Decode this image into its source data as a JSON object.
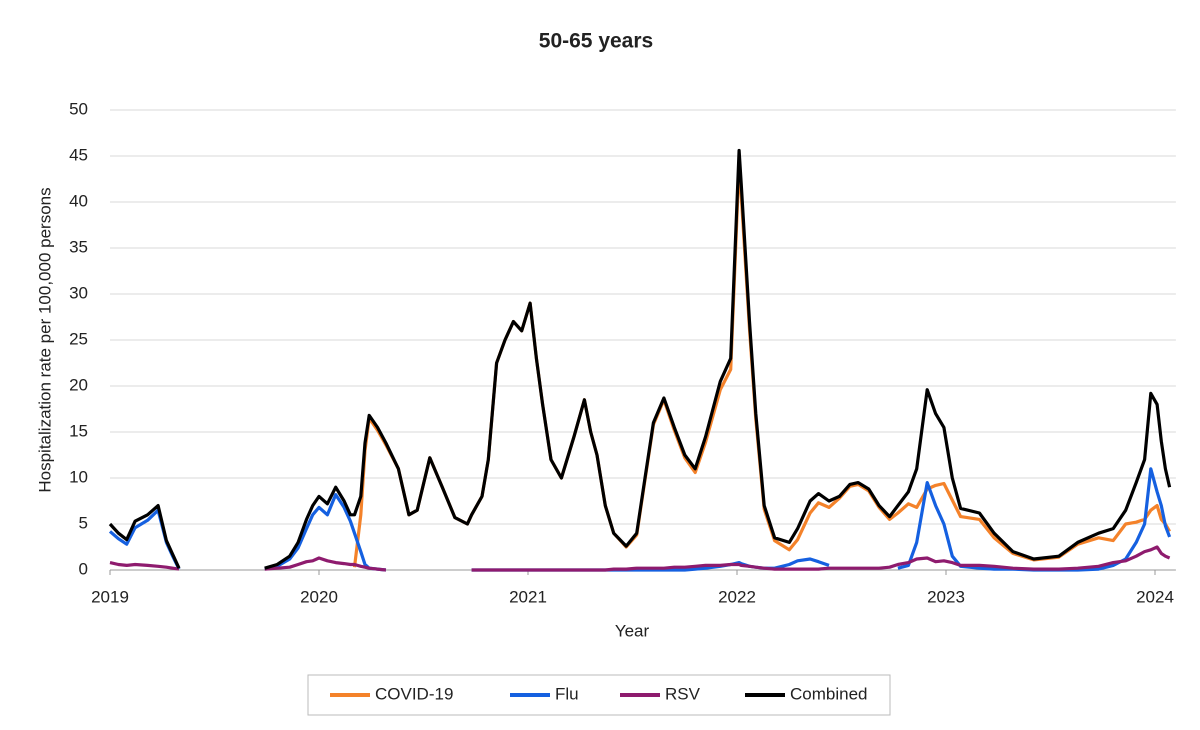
{
  "chart_data": {
    "type": "line",
    "title": "50-65 years",
    "x_label": "Year",
    "y_label": "Hospitalization rate per 100,000 persons",
    "x": [
      2019,
      2019.04,
      2019.08,
      2019.12,
      2019.18,
      2019.23,
      2019.27,
      2019.3,
      2019.33,
      2019.5,
      2019.74,
      2019.8,
      2019.86,
      2019.9,
      2019.94,
      2019.97,
      2020,
      2020.04,
      2020.08,
      2020.12,
      2020.15,
      2020.17,
      2020.2,
      2020.22,
      2020.24,
      2020.28,
      2020.32,
      2020.38,
      2020.43,
      2020.47,
      2020.53,
      2020.59,
      2020.65,
      2020.71,
      2020.73,
      2020.78,
      2020.81,
      2020.85,
      2020.89,
      2020.93,
      2020.97,
      2021.01,
      2021.04,
      2021.07,
      2021.11,
      2021.16,
      2021.22,
      2021.27,
      2021.3,
      2021.33,
      2021.37,
      2021.41,
      2021.47,
      2021.52,
      2021.56,
      2021.6,
      2021.65,
      2021.7,
      2021.75,
      2021.8,
      2021.85,
      2021.92,
      2021.97,
      2022.01,
      2022.02,
      2022.06,
      2022.09,
      2022.13,
      2022.18,
      2022.25,
      2022.29,
      2022.35,
      2022.39,
      2022.44,
      2022.49,
      2022.54,
      2022.58,
      2022.63,
      2022.68,
      2022.73,
      2022.77,
      2022.82,
      2022.86,
      2022.91,
      2022.95,
      2022.99,
      2023.03,
      2023.07,
      2023.16,
      2023.23,
      2023.32,
      2023.42,
      2023.54,
      2023.63,
      2023.73,
      2023.8,
      2023.86,
      2023.91,
      2023.95,
      2023.98,
      2024.01,
      2024.03,
      2024.05,
      2024.07
    ],
    "series": [
      {
        "name": "COVID-19",
        "color": "#f4822a",
        "values": [
          null,
          null,
          null,
          null,
          null,
          null,
          null,
          null,
          null,
          null,
          null,
          null,
          null,
          null,
          null,
          null,
          null,
          null,
          null,
          null,
          null,
          0.3,
          6.0,
          13.0,
          16.5,
          15.2,
          13.6,
          11.0,
          6.0,
          6.5,
          12.2,
          9.0,
          5.7,
          5.0,
          6.0,
          8.0,
          12.0,
          22.5,
          25.0,
          27.0,
          26.0,
          29.0,
          23.0,
          18.0,
          12.0,
          10.0,
          14.5,
          18.5,
          15.0,
          12.5,
          7.0,
          4.0,
          2.5,
          3.8,
          9.8,
          15.8,
          18.5,
          15.2,
          12.2,
          10.6,
          13.9,
          19.6,
          21.8,
          44.2,
          40.8,
          26.2,
          16.4,
          6.6,
          3.2,
          2.2,
          3.3,
          6.2,
          7.3,
          6.8,
          7.8,
          9.1,
          9.3,
          8.6,
          6.8,
          5.5,
          6.2,
          7.2,
          6.8,
          8.8,
          9.2,
          9.4,
          7.6,
          5.8,
          5.5,
          3.5,
          1.8,
          1.1,
          1.4,
          2.8,
          3.5,
          3.2,
          5.0,
          5.2,
          5.5,
          6.5,
          7.0,
          5.5,
          5.0,
          4.2
        ]
      },
      {
        "name": "Flu",
        "color": "#1560e0",
        "values": [
          4.2,
          3.4,
          2.8,
          4.6,
          5.4,
          6.5,
          3.0,
          1.5,
          0.1,
          null,
          0.1,
          0.4,
          1.2,
          2.4,
          4.5,
          6.0,
          6.8,
          6.0,
          8.2,
          6.8,
          5.3,
          4.0,
          2.0,
          0.6,
          0.2,
          0.1,
          0.0,
          null,
          null,
          null,
          null,
          null,
          null,
          null,
          0,
          0,
          0,
          0,
          0,
          0,
          0,
          0,
          0,
          0,
          0,
          0,
          0,
          0,
          0,
          0,
          0,
          0,
          0,
          0,
          0,
          0,
          0,
          0,
          0,
          0.1,
          0.2,
          0.4,
          0.6,
          0.8,
          0.7,
          0.4,
          0.3,
          0.2,
          0.2,
          0.6,
          1.0,
          1.2,
          0.9,
          0.5,
          null,
          null,
          null,
          null,
          null,
          null,
          0.2,
          0.5,
          3.0,
          9.5,
          7.0,
          5.0,
          1.5,
          0.4,
          0.2,
          0.1,
          0.1,
          0,
          0,
          0,
          0.1,
          0.5,
          1.2,
          3.0,
          5.0,
          11.0,
          8.5,
          7.0,
          4.8,
          3.6
        ]
      },
      {
        "name": "RSV",
        "color": "#8e1b6e",
        "values": [
          0.8,
          0.6,
          0.5,
          0.6,
          0.5,
          0.4,
          0.3,
          0.2,
          0.1,
          null,
          0.1,
          0.2,
          0.3,
          0.6,
          0.9,
          1.0,
          1.3,
          1.0,
          0.8,
          0.7,
          0.6,
          0.6,
          0.4,
          0.3,
          0.2,
          0.1,
          0.0,
          null,
          null,
          null,
          null,
          null,
          null,
          null,
          0,
          0,
          0,
          0,
          0,
          0,
          0,
          0,
          0,
          0,
          0,
          0,
          0,
          0,
          0,
          0,
          0,
          0.1,
          0.1,
          0.2,
          0.2,
          0.2,
          0.2,
          0.3,
          0.3,
          0.4,
          0.5,
          0.5,
          0.6,
          0.6,
          0.5,
          0.4,
          0.3,
          0.2,
          0.1,
          0.1,
          0.1,
          0.1,
          0.1,
          0.2,
          0.2,
          0.2,
          0.2,
          0.2,
          0.2,
          0.3,
          0.6,
          0.8,
          1.2,
          1.3,
          0.9,
          1.0,
          0.8,
          0.5,
          0.5,
          0.4,
          0.2,
          0.1,
          0.1,
          0.2,
          0.4,
          0.8,
          1.0,
          1.5,
          2.0,
          2.2,
          2.5,
          1.8,
          1.5,
          1.3
        ]
      },
      {
        "name": "Combined",
        "color": "#000000",
        "values": [
          5.0,
          4.0,
          3.3,
          5.3,
          6.0,
          7.0,
          3.2,
          1.7,
          0.2,
          null,
          0.2,
          0.6,
          1.5,
          3.0,
          5.5,
          7.0,
          8.0,
          7.2,
          9.0,
          7.5,
          6.0,
          6.0,
          8.0,
          13.8,
          16.8,
          15.5,
          13.8,
          11.0,
          6.0,
          6.5,
          12.2,
          9.0,
          5.7,
          5.0,
          6.0,
          8.0,
          12.0,
          22.5,
          25.0,
          27.0,
          26.0,
          29.0,
          23.0,
          18.0,
          12.0,
          10.0,
          14.5,
          18.5,
          15.0,
          12.5,
          7.0,
          4.0,
          2.6,
          4.0,
          10.0,
          16.0,
          18.7,
          15.5,
          12.5,
          11.0,
          14.5,
          20.5,
          23.0,
          45.6,
          42.0,
          27.0,
          17.0,
          7.0,
          3.5,
          3.0,
          4.5,
          7.5,
          8.3,
          7.5,
          8.0,
          9.3,
          9.5,
          8.8,
          7.0,
          5.8,
          7.0,
          8.5,
          11.0,
          19.6,
          17.0,
          15.5,
          10.0,
          6.7,
          6.2,
          4.0,
          2.0,
          1.2,
          1.5,
          3.0,
          4.0,
          4.5,
          6.5,
          9.5,
          12.0,
          19.2,
          18.0,
          14.0,
          11.0,
          9.0
        ]
      }
    ],
    "xlim": [
      2019,
      2024.1
    ],
    "xticks": [
      2019,
      2020,
      2021,
      2022,
      2023,
      2024
    ],
    "ylim": [
      0,
      50
    ],
    "yticks": [
      0,
      5,
      10,
      15,
      20,
      25,
      30,
      35,
      40,
      45,
      50
    ],
    "grid": true,
    "legend": "bottom"
  }
}
